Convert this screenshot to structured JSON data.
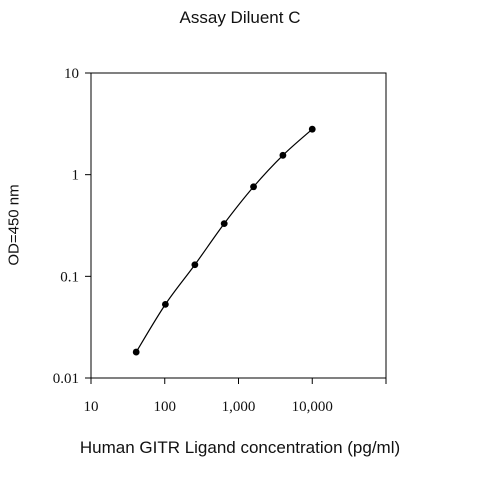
{
  "chart_data": {
    "type": "scatter",
    "title": "Assay Diluent C",
    "xlabel": "Human GITR Ligand concentration (pg/ml)",
    "ylabel": "OD=450 nm",
    "xscale": "log",
    "yscale": "log",
    "xlim": [
      10,
      100000
    ],
    "ylim": [
      0.01,
      10
    ],
    "xticks": [
      10,
      100,
      1000,
      10000
    ],
    "xtick_labels": [
      "10",
      "100",
      "1,000",
      "10,000"
    ],
    "yticks": [
      0.01,
      0.1,
      1,
      10
    ],
    "ytick_labels": [
      "0.01",
      "0.1",
      "1",
      "10"
    ],
    "grid": false,
    "series": [
      {
        "x": [
          41,
          102,
          256,
          640,
          1600,
          4000,
          10000
        ],
        "y": [
          0.018,
          0.053,
          0.13,
          0.33,
          0.76,
          1.55,
          2.8
        ],
        "marker": "circle",
        "line": "smooth",
        "color": "#000000"
      }
    ]
  }
}
